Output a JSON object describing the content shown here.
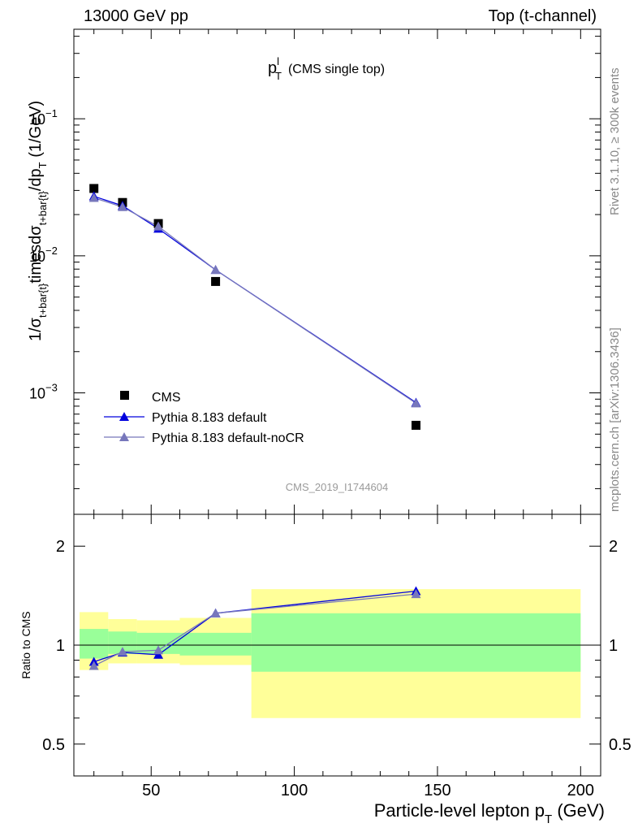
{
  "header": {
    "energy_label": "13000 GeV pp",
    "process_label": "Top (t-channel)"
  },
  "side_labels": {
    "rivet": "Rivet 3.1.10, ≥ 300k events",
    "mcplots": "mcplots.cern.ch [arXiv:1306.3436]"
  },
  "analysis_id": "CMS_2019_I1744604",
  "chart_data": [
    {
      "type": "scatter",
      "panel": "main",
      "title": "p_T^l (CMS single top)",
      "title_parts": {
        "p": "p",
        "sup": "l",
        "sub": "T",
        "rest": "(CMS single top)"
      },
      "ylabel": "1/σ_{t+bar{t}}timesdσ_{t+bar{t}}/dp_{T}  (1/GeV)",
      "ylabel_parts": {
        "a": "1/σ",
        "s1": "t+bar{t}",
        "b": "timesdσ",
        "s2": "t+bar{t}",
        "c": "/dp",
        "s3": "T",
        "d": "  (1/GeV)"
      },
      "yscale": "log",
      "ylim": [
        0.00013,
        0.45
      ],
      "xlim": [
        23,
        207
      ],
      "y_tick_labels": [
        {
          "value": 0.1,
          "base": "10",
          "exp": "−1"
        },
        {
          "value": 0.01,
          "base": "10",
          "exp": "−2"
        },
        {
          "value": 0.001,
          "base": "10",
          "exp": "−3"
        }
      ],
      "legend_position": "bottom-left",
      "series": [
        {
          "name": "CMS",
          "marker": "square",
          "color": "#000000",
          "x": [
            30,
            40,
            52.5,
            72.5,
            142.5
          ],
          "y": [
            0.031,
            0.0245,
            0.0172,
            0.0065,
            0.00058
          ]
        },
        {
          "name": "Pythia 8.183 default",
          "marker": "triangle",
          "color": "#0000dd",
          "x": [
            30,
            40,
            52.5,
            72.5,
            142.5
          ],
          "y": [
            0.0272,
            0.0232,
            0.0158,
            0.0079,
            0.00085
          ]
        },
        {
          "name": "Pythia 8.183 default-noCR",
          "marker": "triangle",
          "color": "#7777bb",
          "x": [
            30,
            40,
            52.5,
            72.5,
            142.5
          ],
          "y": [
            0.0265,
            0.0227,
            0.0164,
            0.0079,
            0.00084
          ]
        }
      ]
    },
    {
      "type": "line",
      "panel": "ratio",
      "ylabel": "Ratio to CMS",
      "xlabel": "Particle-level lepton p_T (GeV)",
      "xlabel_parts": {
        "main": "Particle-level lepton p",
        "sub": "T",
        "unit": " (GeV)"
      },
      "yscale": "log",
      "ylim": [
        0.4,
        2.5
      ],
      "xlim": [
        23,
        207
      ],
      "x_ticks": [
        50,
        100,
        150,
        200
      ],
      "y_ticks": [
        0.5,
        1,
        2
      ],
      "reference_line": 1,
      "bins": [
        {
          "x": [
            25,
            35
          ],
          "stat": [
            0.91,
            1.12
          ],
          "total": [
            0.84,
            1.26
          ]
        },
        {
          "x": [
            35,
            45
          ],
          "stat": [
            0.94,
            1.1
          ],
          "total": [
            0.88,
            1.2
          ]
        },
        {
          "x": [
            45,
            60
          ],
          "stat": [
            0.94,
            1.09
          ],
          "total": [
            0.88,
            1.19
          ]
        },
        {
          "x": [
            60,
            85
          ],
          "stat": [
            0.93,
            1.09
          ],
          "total": [
            0.87,
            1.21
          ]
        },
        {
          "x": [
            85,
            200
          ],
          "stat": [
            0.83,
            1.25
          ],
          "total": [
            0.6,
            1.48
          ]
        }
      ],
      "series": [
        {
          "name": "Pythia 8.183 default",
          "color": "#0000dd",
          "x": [
            30,
            40,
            52.5,
            72.5,
            142.5
          ],
          "y": [
            0.89,
            0.95,
            0.935,
            1.25,
            1.46
          ]
        },
        {
          "name": "Pythia 8.183 default-noCR",
          "color": "#7777bb",
          "x": [
            30,
            40,
            52.5,
            72.5,
            142.5
          ],
          "y": [
            0.865,
            0.955,
            0.965,
            1.25,
            1.43
          ]
        }
      ]
    }
  ]
}
